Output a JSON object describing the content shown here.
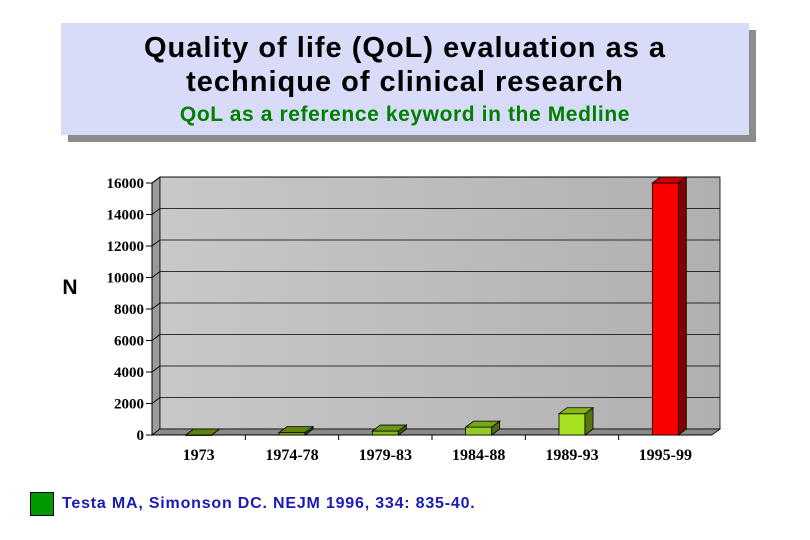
{
  "header": {
    "title": "Quality of life (QoL) evaluation as a\ntechnique of clinical research",
    "subtitle": "QoL as a reference keyword in the Medline"
  },
  "chart_data": {
    "type": "bar",
    "title": "",
    "xlabel": "",
    "ylabel": "N",
    "categories": [
      "1973",
      "1974-78",
      "1979-83",
      "1984-88",
      "1989-93",
      "1995-99"
    ],
    "series": [
      {
        "values": [
          0,
          150,
          250,
          500,
          1350,
          16000
        ]
      }
    ],
    "ylim": [
      0,
      16000
    ],
    "yticks": [
      0,
      2000,
      4000,
      6000,
      8000,
      10000,
      12000,
      14000,
      16000
    ],
    "grid": true,
    "style": "3d",
    "bar_colors": [
      "#6e9a0e",
      "#6e9a0e",
      "#7fb01a",
      "#8cc21e",
      "#9ed61e",
      "#ee0000"
    ],
    "wall_color": "#c0c0c0"
  },
  "footnote": {
    "text": "Testa MA, Simonson DC. NEJM 1996, 334: 835-40.",
    "swatch_color": "#009900"
  }
}
